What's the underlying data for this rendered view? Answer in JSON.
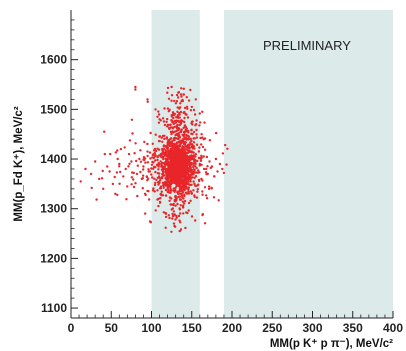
{
  "chart_data": {
    "type": "scatter",
    "title": "",
    "annotation": "PRELIMINARY",
    "xlabel": "MM(p K⁺ p π⁻), MeV/c²",
    "ylabel": "MM(p_Fd K⁺), MeV/c²",
    "xlim": [
      0,
      400
    ],
    "ylim": [
      1080,
      1700
    ],
    "xticks": [
      0,
      50,
      100,
      150,
      200,
      250,
      300,
      350,
      400
    ],
    "yticks": [
      1100,
      1200,
      1300,
      1400,
      1500,
      1600
    ],
    "shaded_bands_x": [
      [
        100,
        160
      ],
      [
        190,
        400
      ]
    ],
    "grid": false,
    "legend": "none",
    "point_color": "#e8262a",
    "band_color": "#dcebea",
    "series": [
      {
        "clusters": [
          {
            "center": [
              133,
              1383
            ],
            "spread": [
              9,
              22
            ],
            "count": 900
          },
          {
            "center": [
              133,
              1392
            ],
            "spread": [
              18,
              50
            ],
            "count": 520
          },
          {
            "center": [
              133,
              1420
            ],
            "spread": [
              10,
              65
            ],
            "count": 260
          },
          {
            "center": [
              115,
              1380
            ],
            "spread": [
              35,
              35
            ],
            "count": 150
          }
        ],
        "x": [
          12,
          18,
          25,
          30,
          35,
          40,
          42,
          45,
          48,
          52,
          55,
          58,
          60,
          62,
          65,
          68,
          70,
          72,
          75,
          78,
          80,
          82,
          85,
          88,
          90,
          92,
          95,
          98,
          160,
          162,
          165,
          168,
          170,
          172,
          175,
          178,
          180,
          182,
          185,
          188,
          190,
          80,
          95,
          105,
          110,
          125,
          140,
          150,
          155,
          135,
          128,
          118
        ],
        "y": [
          1355,
          1380,
          1370,
          1395,
          1360,
          1340,
          1410,
          1385,
          1375,
          1350,
          1330,
          1400,
          1390,
          1420,
          1365,
          1380,
          1345,
          1410,
          1395,
          1372,
          1540,
          1370,
          1400,
          1360,
          1385,
          1330,
          1415,
          1375,
          1390,
          1360,
          1405,
          1380,
          1370,
          1395,
          1385,
          1365,
          1400,
          1375,
          1390,
          1380,
          1372,
          1545,
          1520,
          1500,
          1480,
          1545,
          1530,
          1505,
          1520,
          1255,
          1270,
          1290
        ]
      }
    ]
  }
}
